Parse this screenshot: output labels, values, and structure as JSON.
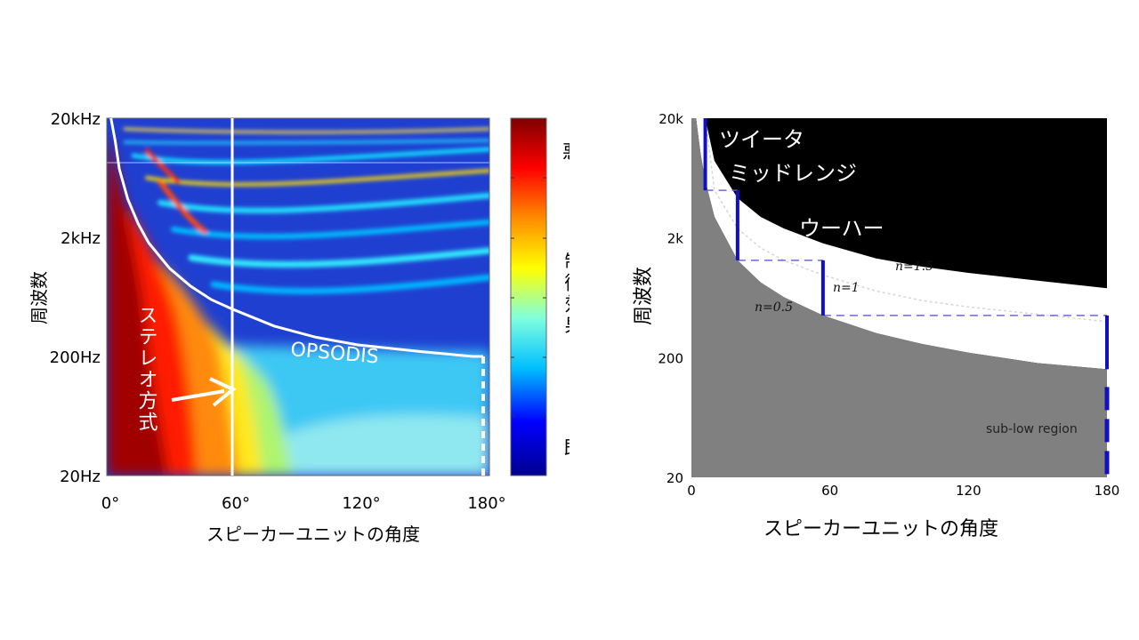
{
  "chart_data": [
    {
      "type": "heatmap",
      "title": "",
      "xlabel": "スピーカーユニットの角度",
      "ylabel": "周波数",
      "x_ticks": [
        "0°",
        "60°",
        "120°",
        "180°"
      ],
      "x_tick_values": [
        0,
        60,
        120,
        180
      ],
      "xlim": [
        0,
        180
      ],
      "y_ticks": [
        "20kHz",
        "2kHz",
        "200Hz",
        "20Hz"
      ],
      "y_tick_values": [
        20000,
        2000,
        200,
        20
      ],
      "ylim": [
        20,
        20000
      ],
      "y_scale": "log",
      "colorbar": {
        "labels": [
          "悪",
          "制御効果",
          "良"
        ],
        "colors": [
          "#7f0000",
          "#ff0000",
          "#ff8c00",
          "#ffff00",
          "#7fffdf",
          "#00bfff",
          "#0000ff",
          "#00008f"
        ]
      },
      "annotations": [
        {
          "text": "ステレオ方式",
          "target_angle": 60,
          "color": "#ffffff"
        },
        {
          "text": "OPSODIS",
          "color": "#ffffff"
        }
      ],
      "opsodis_curve": {
        "x": [
          2,
          4,
          6,
          10,
          15,
          20,
          30,
          40,
          50,
          60,
          80,
          100,
          120,
          150,
          175,
          180
        ],
        "y": [
          20000,
          13000,
          7500,
          4200,
          2600,
          1800,
          1100,
          780,
          600,
          500,
          360,
          290,
          250,
          220,
          200,
          200
        ]
      },
      "stereo_line_angle": 60
    },
    {
      "type": "area",
      "title": "",
      "xlabel": "スピーカーユニットの角度",
      "ylabel": "周波数",
      "x_ticks": [
        "0",
        "60",
        "120",
        "180"
      ],
      "x_tick_values": [
        0,
        60,
        120,
        180
      ],
      "xlim": [
        0,
        180
      ],
      "y_ticks": [
        "20k",
        "2k",
        "200",
        "20"
      ],
      "y_tick_values": [
        20000,
        2000,
        200,
        20
      ],
      "ylim": [
        20,
        20000
      ],
      "y_scale": "log",
      "colors": {
        "upper": "#000000",
        "band": "#ffffff",
        "lower": "#808080",
        "marker": "#1010c0",
        "dashed": "#6a6acc"
      },
      "series": [
        {
          "name": "n=1.5",
          "x": [
            0,
            6,
            10,
            20,
            30,
            40,
            57,
            80,
            100,
            120,
            150,
            180
          ],
          "y": [
            20000,
            20000,
            8800,
            4300,
            3000,
            2400,
            1800,
            1350,
            1150,
            1020,
            880,
            760
          ]
        },
        {
          "name": "n=1",
          "x": [
            6,
            10,
            20,
            30,
            40,
            57,
            80,
            100,
            120,
            150,
            180
          ],
          "y": [
            20000,
            5000,
            2400,
            1650,
            1300,
            980,
            720,
            600,
            530,
            460,
            400
          ]
        },
        {
          "name": "n=0.5",
          "x": [
            2,
            4,
            6,
            10,
            20,
            30,
            40,
            57,
            80,
            100,
            120,
            150,
            180
          ],
          "y": [
            20000,
            10000,
            6000,
            3000,
            1300,
            850,
            640,
            450,
            320,
            260,
            220,
            180,
            160
          ]
        }
      ],
      "steps": [
        {
          "label": "ツイータ",
          "angle": 6,
          "f_low": 5000,
          "f_high": 20000
        },
        {
          "label": "ミッドレンジ",
          "angle": 20,
          "f_low": 1300,
          "f_high": 5000
        },
        {
          "label": "ウーハー",
          "angle": 57,
          "f_low": 450,
          "f_high": 1300
        },
        {
          "label": "",
          "angle": 180,
          "f_low": 160,
          "f_high": 450
        }
      ],
      "region_label": "sub-low region"
    }
  ]
}
